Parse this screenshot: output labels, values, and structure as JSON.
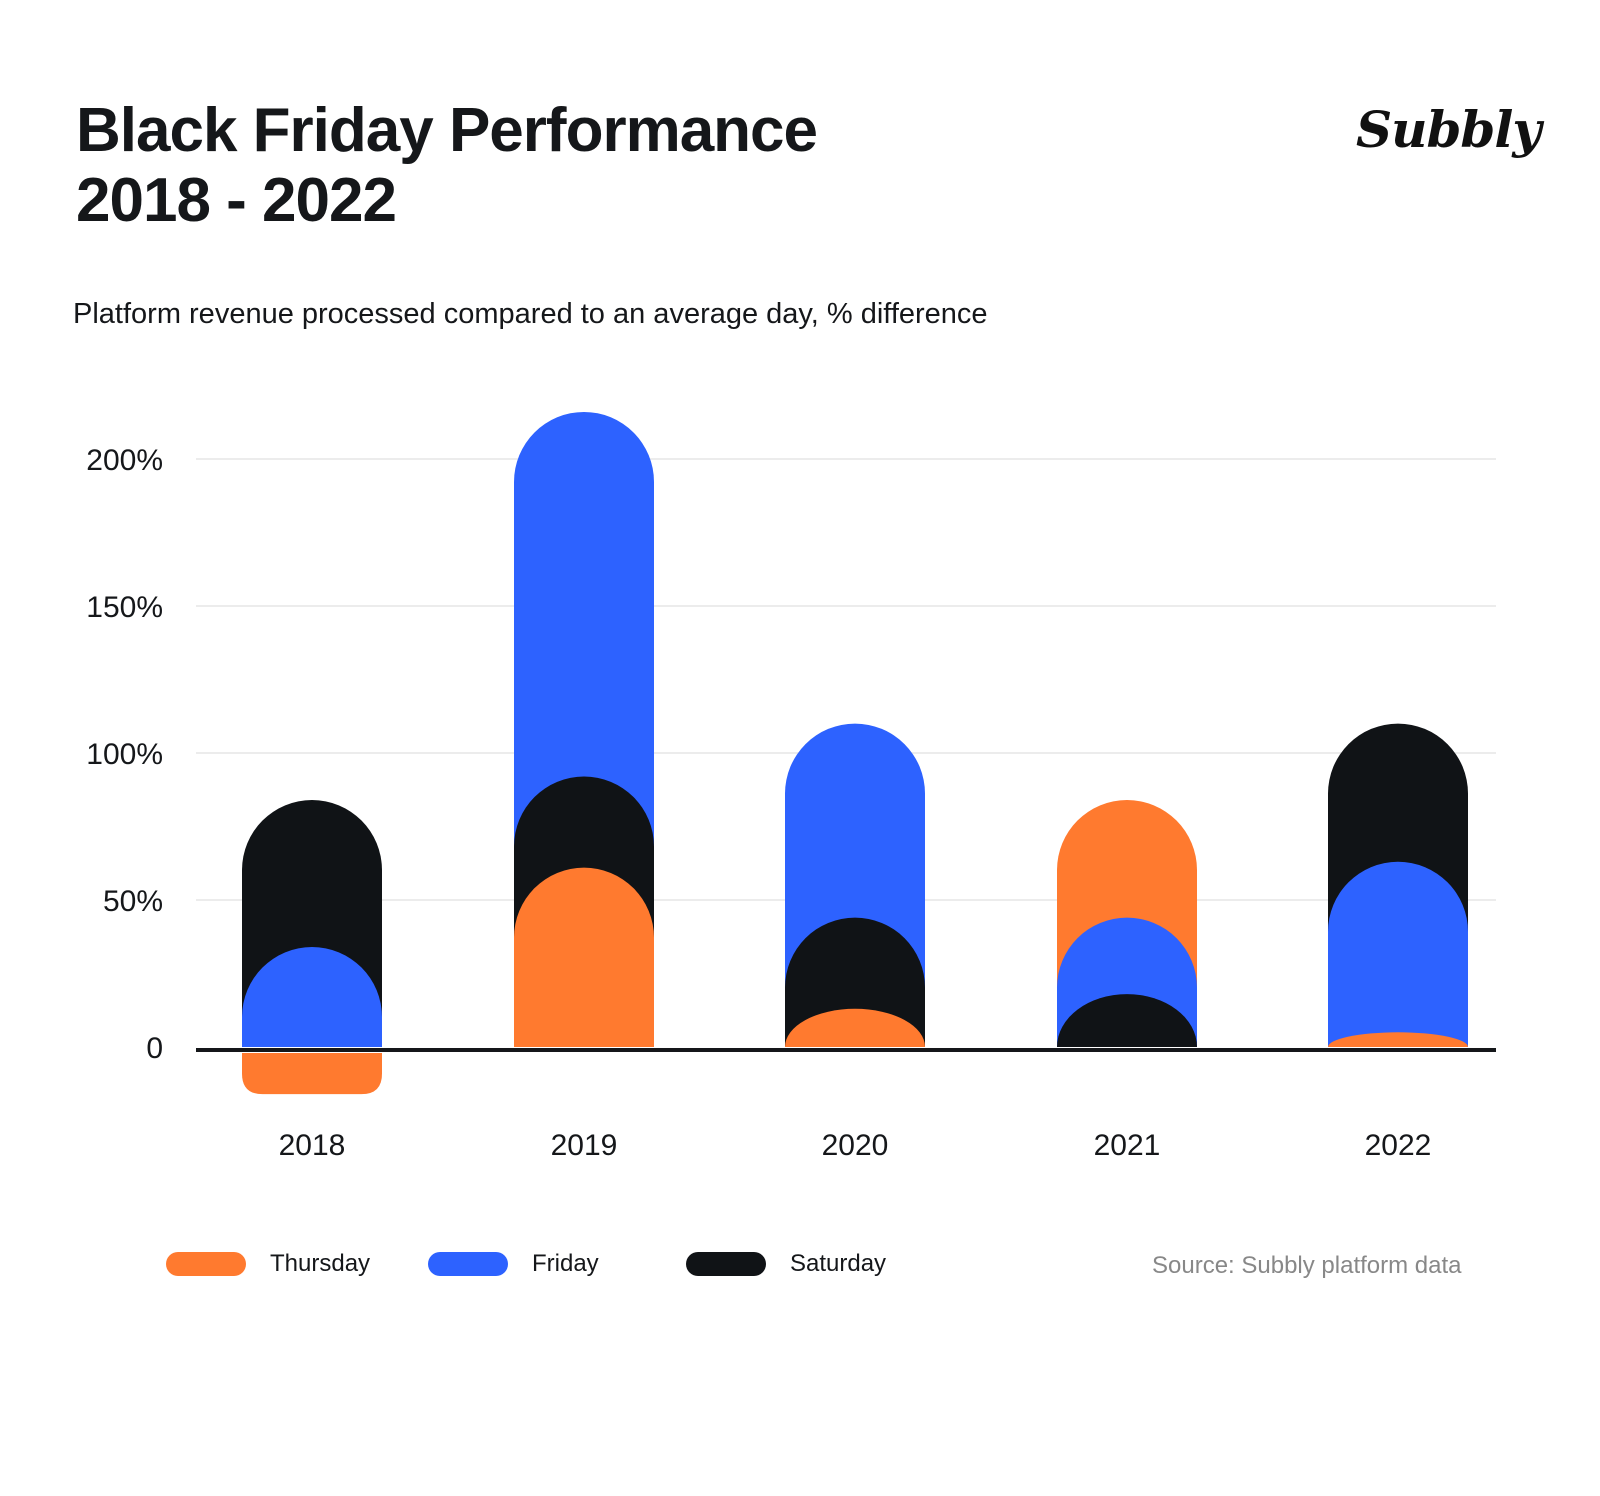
{
  "logo": "Subbly",
  "chart_data": {
    "type": "bar",
    "title": "Black Friday Performance\n2018 - 2022",
    "title_lines": [
      "Black Friday Performance",
      "2018 - 2022"
    ],
    "subtitle": "Platform revenue processed compared to an average day, % difference",
    "categories": [
      "2018",
      "2019",
      "2020",
      "2021",
      "2022"
    ],
    "series": [
      {
        "name": "Thursday",
        "color": "#FF7A2F",
        "values": [
          -14,
          61,
          13,
          84,
          5
        ]
      },
      {
        "name": "Friday",
        "color": "#2D62FF",
        "values": [
          34,
          216,
          110,
          44,
          63
        ]
      },
      {
        "name": "Saturday",
        "color": "#101316",
        "values": [
          84,
          92,
          44,
          18,
          110
        ]
      }
    ],
    "ylim": [
      -20,
      220
    ],
    "yticks": [
      0,
      50,
      100,
      150,
      200
    ],
    "ytick_labels": [
      "0",
      "50%",
      "100%",
      "150%",
      "200%"
    ],
    "grid": true,
    "bars_overlapping": true,
    "legend_position": "bottom-left",
    "source": "Source: Subbly platform data"
  }
}
